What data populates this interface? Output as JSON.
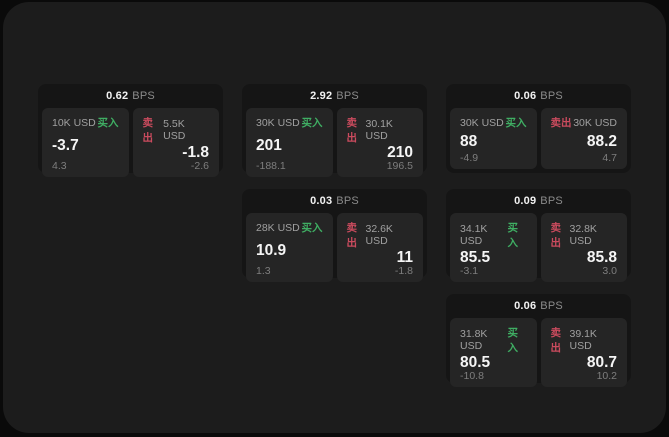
{
  "labels": {
    "buy": "买入",
    "sell": "卖出",
    "bps_suffix": "BPS"
  },
  "colors": {
    "buy": "#3fae63",
    "sell": "#cb4b5e",
    "page_bg": "#1c1c1c",
    "card_bg": "#151515",
    "panel_bg": "#252525"
  },
  "cards": [
    {
      "bps": "0.62",
      "buy": {
        "size": "10K USD",
        "value": "-3.7",
        "sub": "4.3"
      },
      "sell": {
        "size": "5.5K USD",
        "value": "-1.8",
        "sub": "-2.6"
      }
    },
    {
      "bps": "2.92",
      "buy": {
        "size": "30K USD",
        "value": "201",
        "sub": "-188.1"
      },
      "sell": {
        "size": "30.1K USD",
        "value": "210",
        "sub": "196.5"
      }
    },
    {
      "bps": "0.06",
      "buy": {
        "size": "30K USD",
        "value": "88",
        "sub": "-4.9"
      },
      "sell": {
        "size": "30K USD",
        "value": "88.2",
        "sub": "4.7"
      }
    },
    {
      "bps": "0.03",
      "buy": {
        "size": "28K USD",
        "value": "10.9",
        "sub": "1.3"
      },
      "sell": {
        "size": "32.6K USD",
        "value": "11",
        "sub": "-1.8"
      }
    },
    {
      "bps": "0.09",
      "buy": {
        "size": "34.1K USD",
        "value": "85.5",
        "sub": "-3.1"
      },
      "sell": {
        "size": "32.8K USD",
        "value": "85.8",
        "sub": "3.0"
      }
    },
    {
      "bps": "0.06",
      "buy": {
        "size": "31.8K USD",
        "value": "80.5",
        "sub": "-10.8"
      },
      "sell": {
        "size": "39.1K USD",
        "value": "80.7",
        "sub": "10.2"
      }
    }
  ]
}
